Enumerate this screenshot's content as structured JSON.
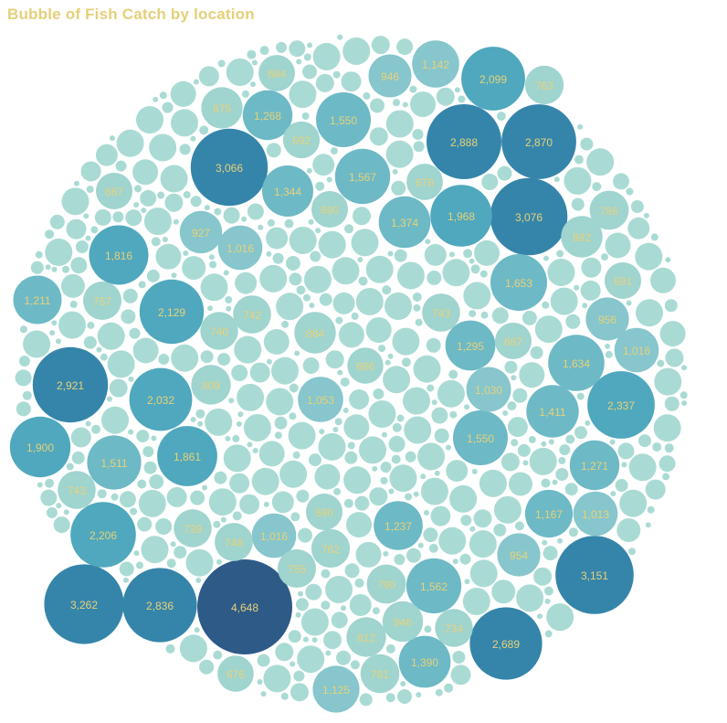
{
  "colors": {
    "title": "#e6cf7a",
    "label": "#e8d27a",
    "small": "#a9dbd4",
    "low": "#9fd4cf",
    "mid": "#4fa8bd",
    "high": "#3585aa",
    "max": "#2e5a88"
  },
  "chart_data": {
    "type": "bubble",
    "title": "Bubble of Fish Catch by location",
    "max_value": 4648,
    "bubbles": [
      {
        "label": "4,648",
        "value": 4648
      },
      {
        "label": "3,262",
        "value": 3262
      },
      {
        "label": "3,151",
        "value": 3151
      },
      {
        "label": "3,076",
        "value": 3076
      },
      {
        "label": "3,066",
        "value": 3066
      },
      {
        "label": "2,921",
        "value": 2921
      },
      {
        "label": "2,888",
        "value": 2888
      },
      {
        "label": "2,870",
        "value": 2870
      },
      {
        "label": "2,836",
        "value": 2836
      },
      {
        "label": "2,689",
        "value": 2689
      },
      {
        "label": "2,337",
        "value": 2337
      },
      {
        "label": "2,206",
        "value": 2206
      },
      {
        "label": "2,129",
        "value": 2129
      },
      {
        "label": "2,099",
        "value": 2099
      },
      {
        "label": "2,032",
        "value": 2032
      },
      {
        "label": "1,968",
        "value": 1968
      },
      {
        "label": "1,900",
        "value": 1900
      },
      {
        "label": "1,861",
        "value": 1861
      },
      {
        "label": "1,816",
        "value": 1816
      },
      {
        "label": "1,653",
        "value": 1653
      },
      {
        "label": "1,634",
        "value": 1634
      },
      {
        "label": "1,567",
        "value": 1567
      },
      {
        "label": "1,562",
        "value": 1562
      },
      {
        "label": "1,550",
        "value": 1550
      },
      {
        "label": "1,550",
        "value": 1550
      },
      {
        "label": "1,511",
        "value": 1511
      },
      {
        "label": "1,411",
        "value": 1411
      },
      {
        "label": "1,390",
        "value": 1390
      },
      {
        "label": "1,374",
        "value": 1374
      },
      {
        "label": "1,344",
        "value": 1344
      },
      {
        "label": "1,295",
        "value": 1295
      },
      {
        "label": "1,271",
        "value": 1271
      },
      {
        "label": "1,268",
        "value": 1268
      },
      {
        "label": "1,237",
        "value": 1237
      },
      {
        "label": "1,211",
        "value": 1211
      },
      {
        "label": "1,167",
        "value": 1167
      },
      {
        "label": "1,142",
        "value": 1142
      },
      {
        "label": "1,125",
        "value": 1125
      },
      {
        "label": "1,053",
        "value": 1053
      },
      {
        "label": "1,030",
        "value": 1030
      },
      {
        "label": "1,016",
        "value": 1016
      },
      {
        "label": "1,016",
        "value": 1016
      },
      {
        "label": "1,016",
        "value": 1016
      },
      {
        "label": "1,013",
        "value": 1013
      },
      {
        "label": "956",
        "value": 956
      },
      {
        "label": "954",
        "value": 954
      },
      {
        "label": "946",
        "value": 946
      },
      {
        "label": "927",
        "value": 927
      },
      {
        "label": "884",
        "value": 884
      },
      {
        "label": "882",
        "value": 882
      },
      {
        "label": "875",
        "value": 875
      },
      {
        "label": "846",
        "value": 846
      },
      {
        "label": "812",
        "value": 812
      },
      {
        "label": "809",
        "value": 809
      },
      {
        "label": "790",
        "value": 790
      },
      {
        "label": "786",
        "value": 786
      },
      {
        "label": "781",
        "value": 781
      },
      {
        "label": "763",
        "value": 763
      },
      {
        "label": "762",
        "value": 762
      },
      {
        "label": "757",
        "value": 757
      },
      {
        "label": "755",
        "value": 755
      },
      {
        "label": "748",
        "value": 748
      },
      {
        "label": "743",
        "value": 743
      },
      {
        "label": "743",
        "value": 743
      },
      {
        "label": "742",
        "value": 742
      },
      {
        "label": "740",
        "value": 740
      },
      {
        "label": "739",
        "value": 739
      },
      {
        "label": "734",
        "value": 734
      },
      {
        "label": "692",
        "value": 692
      },
      {
        "label": "691",
        "value": 691
      },
      {
        "label": "690",
        "value": 690
      },
      {
        "label": "690",
        "value": 690
      },
      {
        "label": "687",
        "value": 687
      },
      {
        "label": "687",
        "value": 687
      },
      {
        "label": "684",
        "value": 684
      },
      {
        "label": "678",
        "value": 678
      },
      {
        "label": "676",
        "value": 676
      },
      {
        "label": "666",
        "value": 666
      }
    ]
  }
}
